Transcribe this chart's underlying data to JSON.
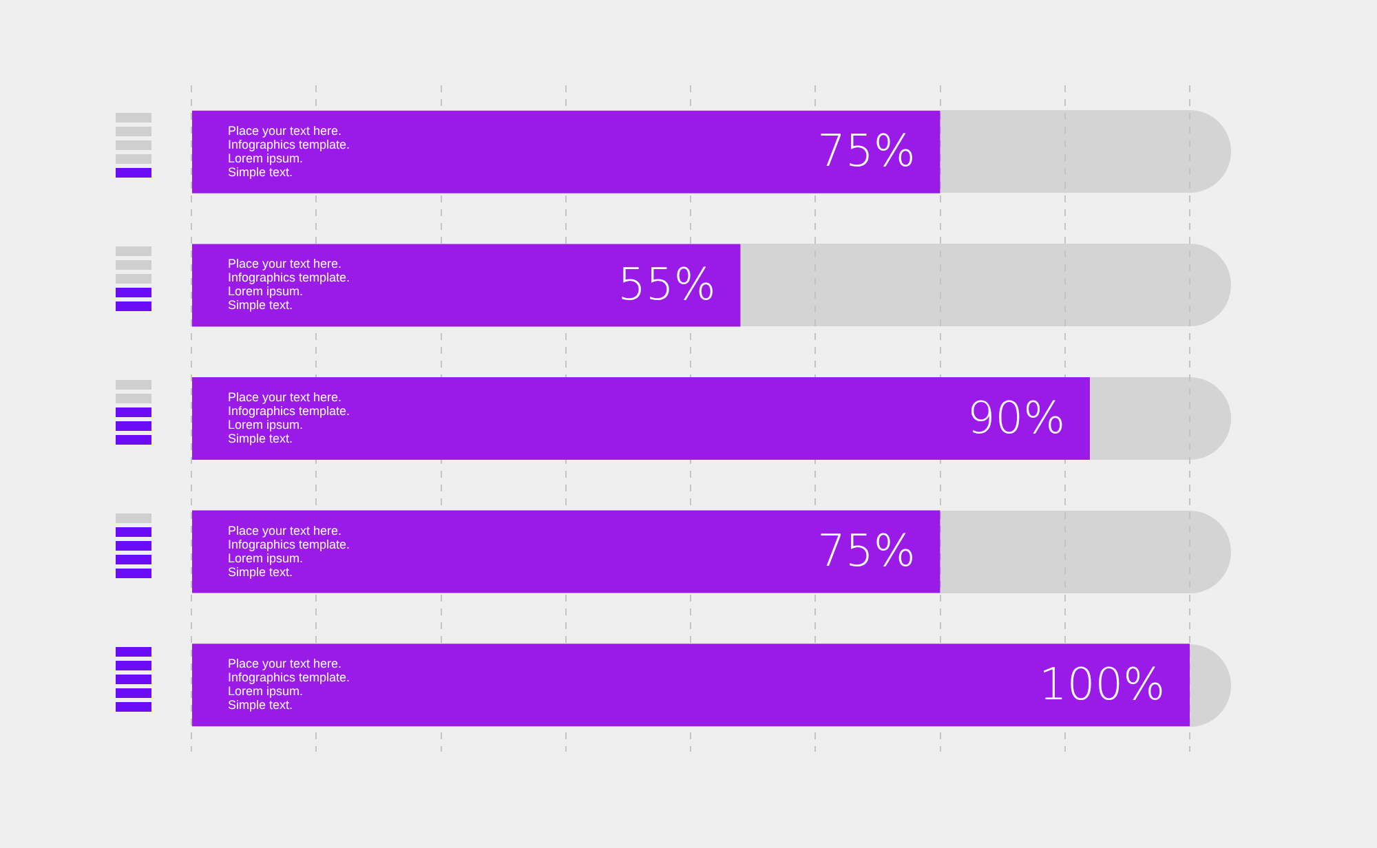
{
  "chart_data": {
    "type": "bar",
    "orientation": "horizontal",
    "categories": [
      "Place your text here. Infographics template. Lorem ipsum. Simple text.",
      "Place your text here. Infographics template. Lorem ipsum. Simple text.",
      "Place your text here. Infographics template. Lorem ipsum. Simple text.",
      "Place your text here. Infographics template. Lorem ipsum. Simple text.",
      "Place your text here. Infographics template. Lorem ipsum. Simple text."
    ],
    "values": [
      75,
      55,
      90,
      75,
      100
    ],
    "value_labels": [
      "75%",
      "55%",
      "90%",
      "75%",
      "100%"
    ],
    "color": "#9a1ae8",
    "xlim": [
      0,
      100
    ],
    "xticks": [
      {
        "value": 0,
        "label": null
      },
      {
        "value": 12.5,
        "label": null
      },
      {
        "value": 25,
        "label": null
      },
      {
        "value": 37.5,
        "label": null
      },
      {
        "value": 50,
        "label": null
      },
      {
        "value": 62.5,
        "label": null
      },
      {
        "value": 75,
        "label": null
      },
      {
        "value": 87.5,
        "label": null
      },
      {
        "value": 100,
        "label": null
      }
    ],
    "grid": "x",
    "tick_labels": false,
    "legend": false
  }
}
